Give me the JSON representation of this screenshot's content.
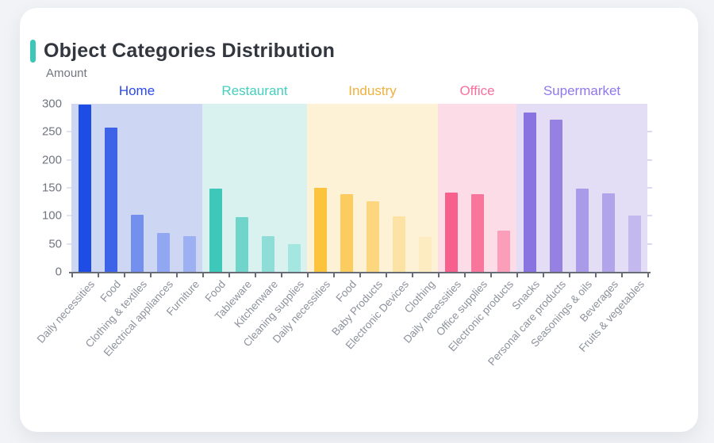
{
  "page": {
    "background_color": "#f1f3f6",
    "accent_color": "#3ec6b8"
  },
  "chart": {
    "title": "Object Categories Distribution",
    "ylabel": "Amount"
  },
  "chart_data": {
    "type": "bar",
    "title": "Object Categories Distribution",
    "ylabel": "Amount",
    "xlabel": "",
    "ylim": [
      0,
      300
    ],
    "yticks": [
      0,
      50,
      100,
      150,
      200,
      250,
      300
    ],
    "grid": false,
    "legend_position": "none",
    "groups": [
      {
        "name": "Home",
        "label_color": "#2b49ea",
        "panel_color": "#cdd7f4",
        "categories": [
          "Daily necessities",
          "Food",
          "Clothing & textiles",
          "Electrical appliances",
          "Furniture"
        ],
        "values": [
          298,
          257,
          102,
          69,
          63
        ],
        "bar_colors": [
          "#1d4de4",
          "#3c63e8",
          "#7390ee",
          "#92a7f1",
          "#9cb0f2"
        ]
      },
      {
        "name": "Restaurant",
        "label_color": "#45cfbc",
        "panel_color": "#d9f2ef",
        "categories": [
          "Food",
          "Tableware",
          "Kitchenware",
          "Cleaning supplies"
        ],
        "values": [
          148,
          97,
          64,
          50
        ],
        "bar_colors": [
          "#3ec8ba",
          "#6fd5ca",
          "#8eded7",
          "#a4e6e0"
        ]
      },
      {
        "name": "Industry",
        "label_color": "#efb03e",
        "panel_color": "#fdf2d6",
        "categories": [
          "Daily necessities",
          "Food",
          "Baby Products",
          "Electronic Devices",
          "Clothing"
        ],
        "values": [
          150,
          138,
          126,
          99,
          62
        ],
        "bar_colors": [
          "#fcc33c",
          "#fccd5e",
          "#fdd77d",
          "#fde3a3",
          "#fdecc1"
        ]
      },
      {
        "name": "Office",
        "label_color": "#f7709c",
        "panel_color": "#fcdce6",
        "categories": [
          "Daily necessities",
          "Office supplies",
          "Electronic products"
        ],
        "values": [
          142,
          138,
          74
        ],
        "bar_colors": [
          "#f75f8c",
          "#f8759c",
          "#fa9eb9"
        ]
      },
      {
        "name": "Supermarket",
        "label_color": "#9078ec",
        "panel_color": "#e3def6",
        "categories": [
          "Snacks",
          "Personal care products",
          "Seasonings & oils",
          "Beverages",
          "Fruits & vegetables"
        ],
        "values": [
          285,
          271,
          148,
          140,
          101
        ],
        "bar_colors": [
          "#8973e0",
          "#9681e3",
          "#aa9be8",
          "#b2a4ea",
          "#c3b9ef"
        ]
      }
    ]
  }
}
